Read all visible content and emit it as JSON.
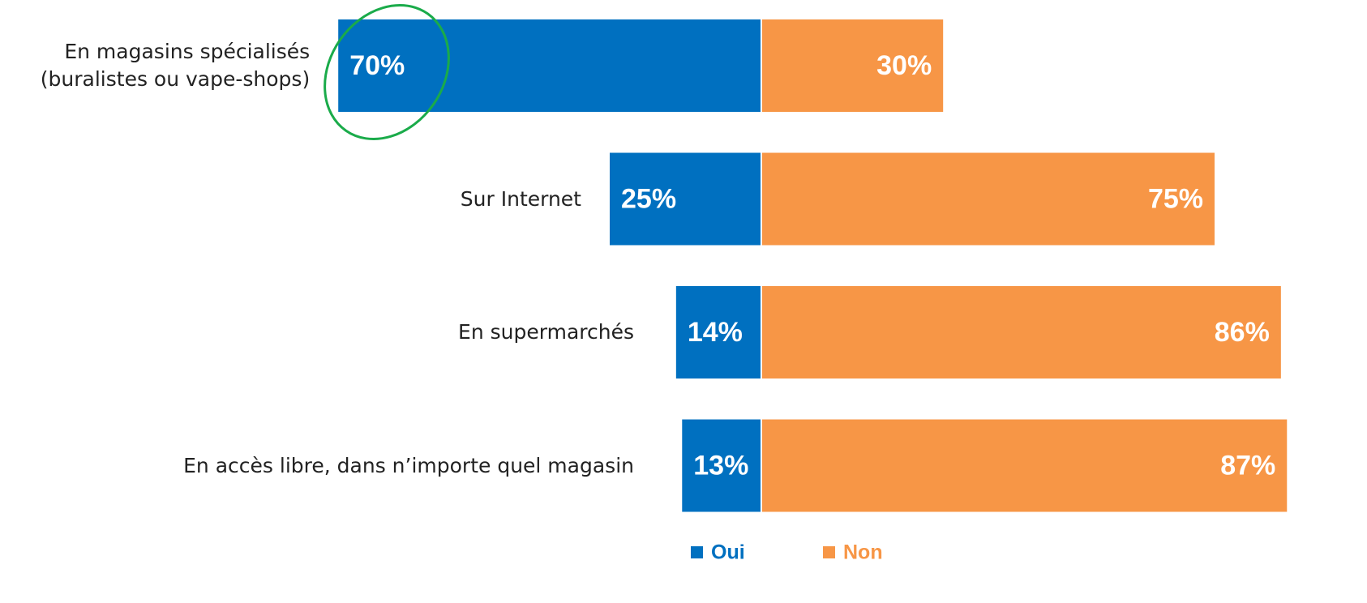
{
  "chart_data": {
    "type": "diverging_bar",
    "categories": [
      "En magasins spécialisés (buralistes ou vape-shops)",
      "Sur Internet",
      "En supermarchés",
      "En accès libre, dans n’importe quel magasin"
    ],
    "series": [
      {
        "name": "Oui",
        "color": "#0070c0",
        "values": [
          70,
          25,
          14,
          13
        ],
        "value_labels": [
          "70%",
          "25%",
          "14%",
          "13%"
        ]
      },
      {
        "name": "Non",
        "color": "#f79646",
        "values": [
          30,
          75,
          86,
          87
        ],
        "value_labels": [
          "30%",
          "75%",
          "86%",
          "87%"
        ]
      }
    ]
  }
}
